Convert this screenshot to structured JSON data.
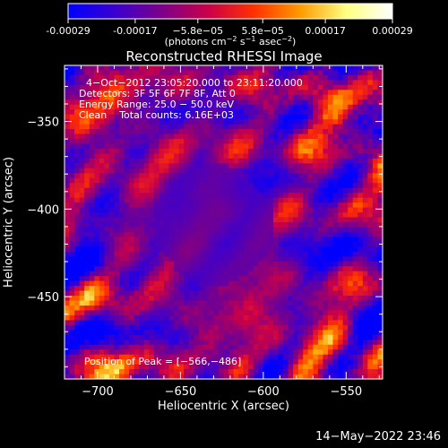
{
  "colorbar": {
    "tick_labels": [
      "-0.00029",
      "-0.00017",
      "−5.8e−05",
      "5.8e−05",
      "0.00017",
      "0.00029"
    ],
    "tick_values": [
      -0.00029,
      -0.00017,
      -5.8e-05,
      5.8e-05,
      0.00017,
      0.00029
    ],
    "range": [
      -0.00029,
      0.00029
    ],
    "unit_parts": [
      "(photons cm",
      "−2",
      " s",
      "−1",
      " asec",
      "−2",
      ")"
    ],
    "stops": [
      "#0000ff",
      "#3a00d0",
      "#7a008a",
      "#c8004a",
      "#ff3000",
      "#ff9a00",
      "#ffff80",
      "#ffffff"
    ]
  },
  "chart_data": {
    "type": "heatmap",
    "title": "Reconstructed RHESSI Image",
    "xlabel": "Heliocentric X (arcsec)",
    "ylabel": "Heliocentric Y (arcsec)",
    "xlim": [
      -720,
      -528
    ],
    "ylim": [
      -497,
      -318
    ],
    "x_ticks": [
      -700,
      -650,
      -600,
      -550
    ],
    "x_tick_labels": [
      "−700",
      "−650",
      "−600",
      "−550"
    ],
    "y_ticks": [
      -450,
      -400,
      -350
    ],
    "y_tick_labels": [
      "−450",
      "−400",
      "−350"
    ],
    "annotations": [
      "4−Oct−2012 23:05:20.000 to 23:11:20.000",
      "Detectors: 3F 5F 6F 7F 8F, Att 0",
      "Energy Range: 25.0 − 50.0 keV",
      "Clean    Total counts: 6.16E+03"
    ],
    "peak_label": "Position of Peak = [−566,−486]",
    "peak": [
      -566,
      -486
    ],
    "colormap": "blue-purple-red-yellow-white"
  },
  "footer": {
    "timestamp": "14−May−2022 23:46"
  }
}
